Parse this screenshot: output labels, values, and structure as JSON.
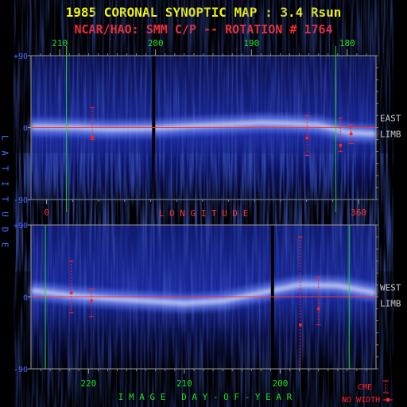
{
  "title": "1985 CORONAL SYNOPTIC MAP : 3.4 Rsun",
  "subtitle": "NCAR/HAO: SMM C/P -- ROTATION # 1764",
  "colors": {
    "title": "#ffff00",
    "subtitle": "#ff2a2a",
    "green_label": "#22dd22",
    "blue_label": "#4a6aff",
    "red_label": "#ff3030",
    "frame": "#9a9a9a",
    "side_label": "#c8c8c8",
    "map_background": "#16238a",
    "streamer": "#eef2ff",
    "equator": "#ff3030",
    "marker_line": "#22dd22",
    "cme": "#ff2020"
  },
  "axis_labels": {
    "latitude": "L A T I T U D E",
    "longitude": "L O N G I T U D E",
    "day_of_year": "I M A G E   D A Y - O F - Y E A R"
  },
  "legend": {
    "cme": "CME",
    "no_width": "NO WIDTH"
  },
  "chart_data": [
    {
      "type": "heatmap",
      "panel": "east-limb",
      "side_label_top": "EAST",
      "side_label_bottom": "LIMB",
      "ylim": [
        -90,
        90
      ],
      "y_ticks": [
        "+90",
        "0",
        "-90"
      ],
      "top_axis": {
        "range": [
          213,
          177
        ],
        "ticks": [
          {
            "value": 210,
            "label": "210"
          },
          {
            "value": 200,
            "label": "200"
          },
          {
            "value": 190,
            "label": "190"
          },
          {
            "value": 180,
            "label": "180"
          }
        ]
      },
      "bottom_axis": {
        "range": [
          -18,
          380
        ],
        "ticks": [
          {
            "value": 0,
            "label": "0"
          },
          {
            "value": 360,
            "label": "360"
          }
        ]
      },
      "streamer_belt": {
        "x": [
          213,
          208,
          205,
          200,
          196,
          192,
          189,
          186,
          183,
          180,
          177
        ],
        "lat": [
          1,
          0,
          -2,
          -1,
          2,
          4,
          6,
          5,
          3,
          -6,
          -8
        ]
      },
      "data_gaps": [
        200.2
      ],
      "marker_lines": [
        209.3,
        181.2
      ],
      "cme_events": [
        {
          "day": 206.6,
          "lat_top": 25,
          "lat_bottom": -15,
          "mark": -12
        },
        {
          "day": 184.2,
          "lat_top": 15,
          "lat_bottom": -35,
          "mark": -13
        },
        {
          "day": 180.7,
          "lat_top": 12,
          "lat_bottom": -30,
          "mark": -22
        },
        {
          "day": 179.6,
          "lat_top": 4,
          "lat_bottom": -20,
          "mark": -8
        }
      ]
    },
    {
      "type": "heatmap",
      "panel": "west-limb",
      "side_label_top": "WEST",
      "side_label_bottom": "LIMB",
      "ylim": [
        -90,
        90
      ],
      "y_ticks": [
        "+90",
        "0",
        "-90"
      ],
      "bottom_axis": {
        "range": [
          226,
          190
        ],
        "ticks": [
          {
            "value": 220,
            "label": "220"
          },
          {
            "value": 210,
            "label": "210"
          },
          {
            "value": 200,
            "label": "200"
          }
        ]
      },
      "streamer_belt": {
        "x": [
          226,
          222,
          218,
          214,
          210,
          206,
          202,
          198,
          194,
          190
        ],
        "lat": [
          8,
          2,
          -2,
          -5,
          -8,
          -5,
          5,
          15,
          14,
          5
        ]
      },
      "data_gaps": [
        200.8
      ],
      "marker_lines": [
        224.5,
        192.8
      ],
      "cme_events": [
        {
          "day": 221.8,
          "lat_top": 45,
          "lat_bottom": -20,
          "mark": 5
        },
        {
          "day": 219.7,
          "lat_top": 10,
          "lat_bottom": -25,
          "mark": -5
        },
        {
          "day": 197.9,
          "lat_top": 75,
          "lat_bottom": -90,
          "mark": -35
        },
        {
          "day": 196.0,
          "lat_top": 25,
          "lat_bottom": -35,
          "mark": -15
        }
      ]
    }
  ]
}
